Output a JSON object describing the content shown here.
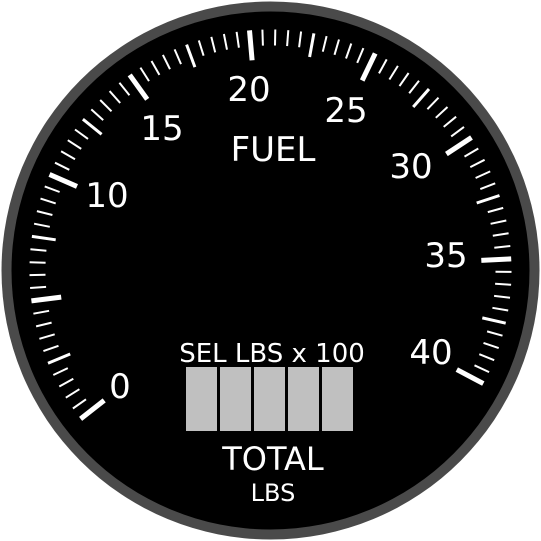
{
  "gauge": {
    "title": "FUEL",
    "scale_labels": [
      "0",
      "10",
      "15",
      "20",
      "25",
      "30",
      "35",
      "40"
    ],
    "scale_values": [
      0,
      10,
      15,
      20,
      25,
      30,
      35,
      40
    ],
    "scale_min": 0,
    "scale_max": 40,
    "selector_label": "SEL LBS x 100",
    "digit_windows": [
      "",
      "",
      "",
      "",
      ""
    ],
    "total_label": "TOTAL",
    "units_label": "LBS",
    "colors": {
      "bezel": "#4a4a4a",
      "face": "#000000",
      "markings": "#ffffff",
      "window": "#c0c0c0"
    }
  }
}
